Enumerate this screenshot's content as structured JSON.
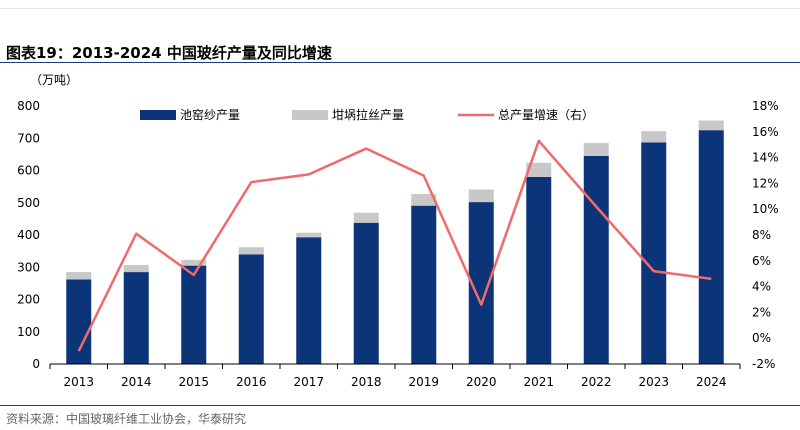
{
  "figure": {
    "title": "图表19：2013-2024 中国玻纤产量及同比增速",
    "source": "资料来源：中国玻璃纤维工业协会，华泰研究"
  },
  "colors": {
    "primary": "#0b3479",
    "secondary": "#c8c8c8",
    "line": "#f06a6a",
    "rule": "#1f3c7a"
  },
  "chart_data": {
    "type": "bar",
    "stacked": true,
    "categories": [
      "2013",
      "2014",
      "2015",
      "2016",
      "2017",
      "2018",
      "2019",
      "2020",
      "2021",
      "2022",
      "2023",
      "2024"
    ],
    "left_axis": {
      "label": "（万吨）",
      "ylim": [
        0,
        800
      ],
      "ticks": [
        0,
        100,
        200,
        300,
        400,
        500,
        600,
        700,
        800
      ]
    },
    "right_axis": {
      "ylim": [
        -2,
        18
      ],
      "ticks": [
        "-2%",
        "0%",
        "2%",
        "4%",
        "6%",
        "8%",
        "10%",
        "12%",
        "14%",
        "16%",
        "18%"
      ]
    },
    "series": [
      {
        "name": "池窑纱产量",
        "kind": "bar",
        "axis": "left",
        "values": [
          262,
          285,
          305,
          340,
          393,
          438,
          491,
          502,
          580,
          645,
          687,
          725
        ]
      },
      {
        "name": "坩埚拉丝产量",
        "kind": "bar",
        "axis": "left",
        "values": [
          23,
          22,
          18,
          22,
          14,
          31,
          36,
          39,
          44,
          40,
          35,
          30
        ]
      },
      {
        "name": "总产量增速（右）",
        "kind": "line",
        "axis": "right",
        "values": [
          -1.0,
          8.1,
          4.9,
          12.1,
          12.7,
          14.7,
          12.6,
          2.6,
          15.3,
          10.2,
          5.2,
          4.6
        ]
      }
    ],
    "legend_position": "top",
    "grid": false
  }
}
